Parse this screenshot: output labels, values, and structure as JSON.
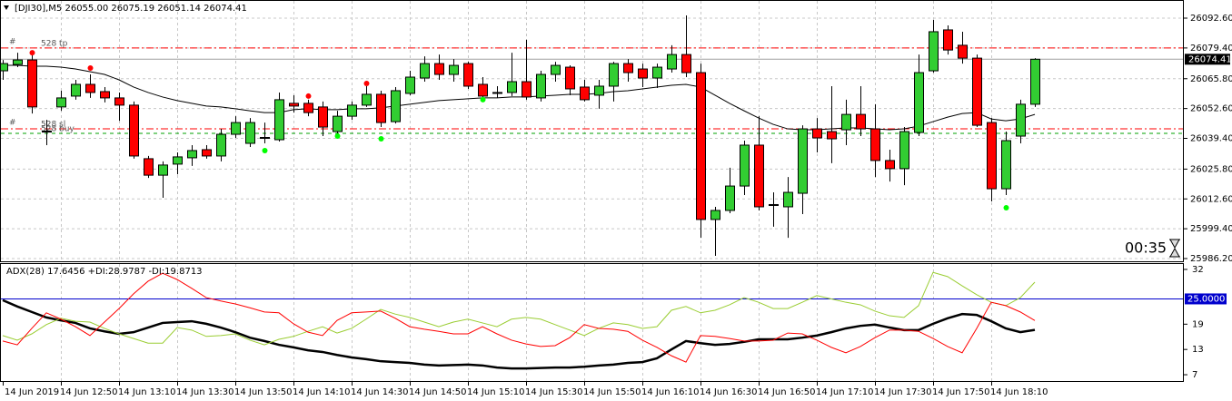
{
  "chart_data": [
    {
      "type": "candlestick",
      "title": "[DJI30],M5  26055.00 26075.19 26051.14 26074.41",
      "countdown": "00:35",
      "categories": [
        "14 Jun 2019",
        null,
        null,
        null,
        "14 Jun 12:50",
        null,
        null,
        null,
        "14 Jun 13:10",
        null,
        null,
        null,
        "14 Jun 13:30",
        null,
        null,
        null,
        "14 Jun 13:50",
        null,
        null,
        null,
        "14 Jun 14:10",
        null,
        null,
        null,
        "14 Jun 14:30",
        null,
        null,
        null,
        "14 Jun 14:50",
        null,
        null,
        null,
        "14 Jun 15:10",
        null,
        null,
        null,
        "14 Jun 15:30",
        null,
        null,
        null,
        "14 Jun 15:50",
        null,
        null,
        null,
        "14 Jun 16:10",
        null,
        null,
        null,
        "14 Jun 16:30",
        null,
        null,
        null,
        "14 Jun 16:50",
        null,
        null,
        null,
        "14 Jun 17:10",
        null,
        null,
        null,
        "14 Jun 17:30",
        null,
        null,
        null,
        "14 Jun 17:50",
        null,
        null,
        null,
        "14 Jun 18:10",
        null,
        null,
        null
      ],
      "open": [
        26069.3,
        26072.1,
        26074.1,
        26042.4,
        26053.3,
        26058.1,
        26063.3,
        26060.1,
        26057.3,
        26054.1,
        26030.4,
        26023.1,
        26028.0,
        26030.8,
        26034.4,
        26031.6,
        26041.2,
        26037.2,
        26039.6,
        26038.8,
        26054.9,
        26054.9,
        26053.3,
        26042.4,
        26049.2,
        26054.1,
        26058.9,
        26046.8,
        26059.3,
        26066.1,
        26072.5,
        26067.7,
        26072.5,
        26063.3,
        26059.7,
        26059.7,
        26064.5,
        26057.3,
        26067.7,
        26070.9,
        26062.1,
        26058.5,
        26062.5,
        26072.5,
        26070.1,
        26066.1,
        26070.1,
        26076.5,
        26068.5,
        26003.5,
        26007.5,
        26018.3,
        26036.4,
        26009.9,
        26009.1,
        26015.1,
        26043.6,
        26042.4,
        26043.2,
        26050.0,
        26043.6,
        26029.6,
        26026.0,
        26042.0,
        26069.3,
        26087.4,
        26080.6,
        26074.9,
        26046.4,
        26017.1,
        26040.4,
        26054.5
      ],
      "high": [
        26074.1,
        26077.3,
        26077.3,
        26047.6,
        26060.5,
        26065.3,
        26067.7,
        26062.1,
        26059.7,
        26055.7,
        26031.6,
        26029.2,
        26033.2,
        26036.4,
        26036.4,
        26043.6,
        26049.2,
        26048.4,
        26046.4,
        26059.7,
        26058.5,
        26056.5,
        26055.7,
        26051.6,
        26055.7,
        26062.5,
        26060.5,
        26062.1,
        26069.3,
        26075.7,
        26076.5,
        26074.5,
        26073.3,
        26066.5,
        26062.5,
        26077.3,
        26083.0,
        26069.3,
        26073.3,
        26071.7,
        26065.3,
        26065.3,
        26073.3,
        26074.5,
        26072.5,
        26072.5,
        26080.6,
        26093.8,
        26072.5,
        26009.1,
        26026.4,
        26038.4,
        26049.2,
        26015.5,
        26022.3,
        26045.2,
        26048.4,
        26062.5,
        26056.5,
        26062.5,
        26054.5,
        26034.4,
        26044.4,
        26076.5,
        26091.8,
        26089.4,
        26086.6,
        26076.5,
        26048.4,
        26042.4,
        26056.5,
        26074.9
      ],
      "low": [
        26065.3,
        26070.9,
        26050.4,
        26036.4,
        26051.6,
        26056.5,
        26057.3,
        26055.3,
        26047.2,
        26030.4,
        26021.9,
        26013.1,
        26023.5,
        26027.2,
        26030.4,
        26029.2,
        26039.6,
        26035.6,
        26037.2,
        26038.0,
        26050.8,
        26049.2,
        26040.4,
        26040.4,
        26047.6,
        26053.3,
        26044.4,
        26046.0,
        26058.5,
        26064.5,
        26065.3,
        26064.5,
        26061.3,
        26056.5,
        26057.3,
        26058.1,
        26056.5,
        26055.7,
        26064.5,
        26058.5,
        26055.7,
        26052.5,
        26055.7,
        26064.5,
        26062.1,
        26061.7,
        26068.5,
        26066.5,
        25995.4,
        25987.4,
        26006.3,
        26014.3,
        26007.5,
        26000.3,
        25995.4,
        26005.9,
        26033.2,
        26028.4,
        26036.4,
        26040.4,
        26022.3,
        26020.3,
        26018.7,
        26040.4,
        26068.5,
        26076.5,
        26072.5,
        26044.4,
        26011.5,
        26014.3,
        26037.2,
        26053.3
      ],
      "close": [
        26072.5,
        26074.1,
        26053.3,
        26042.6,
        26057.3,
        26063.3,
        26059.7,
        26057.3,
        26054.1,
        26031.6,
        26023.1,
        26027.6,
        26031.2,
        26034.0,
        26031.6,
        26041.2,
        26046.4,
        26046.4,
        26039.8,
        26056.5,
        26053.7,
        26050.8,
        26044.4,
        26049.2,
        26054.1,
        26058.9,
        26046.4,
        26060.5,
        26066.5,
        26072.5,
        26067.7,
        26071.7,
        26062.5,
        26058.1,
        26059.3,
        26064.5,
        26057.7,
        26067.7,
        26071.7,
        26061.3,
        26056.5,
        26062.5,
        26072.5,
        26068.5,
        26066.1,
        26070.9,
        26076.5,
        26068.5,
        26003.5,
        26007.5,
        26018.3,
        26036.4,
        26009.1,
        26010.1,
        26015.5,
        26043.6,
        26039.6,
        26039.2,
        26050.0,
        26043.6,
        26029.6,
        26026.0,
        26042.4,
        26068.5,
        26086.6,
        26078.5,
        26074.9,
        26045.2,
        26017.1,
        26038.4,
        26054.5,
        26074.41
      ],
      "up_color": "#32cd32",
      "down_color": "#ff0000",
      "ma": {
        "color": "#000000",
        "values": [
          26071.7,
          26071.7,
          26071.3,
          26071.3,
          26070.9,
          26070.1,
          26068.9,
          26067.7,
          26065.3,
          26062.1,
          26059.7,
          26057.7,
          26056.1,
          26054.9,
          26053.7,
          26053.3,
          26052.5,
          26051.6,
          26050.8,
          26050.8,
          26052.1,
          26052.5,
          26052.1,
          26052.1,
          26052.5,
          26052.5,
          26052.9,
          26053.7,
          26054.5,
          26055.3,
          26056.1,
          26056.5,
          26056.9,
          26057.3,
          26057.3,
          26057.7,
          26057.7,
          26058.1,
          26058.5,
          26058.9,
          26058.9,
          26059.3,
          26060.1,
          26060.5,
          26061.3,
          26062.1,
          26062.9,
          26063.3,
          26062.1,
          26058.5,
          26054.9,
          26051.6,
          26048.4,
          26045.6,
          26043.6,
          26043.2,
          26043.2,
          26043.6,
          26044.0,
          26044.0,
          26043.6,
          26043.2,
          26043.6,
          26044.8,
          26046.8,
          26048.8,
          26050.4,
          26050.8,
          26048.0,
          26047.2,
          26048.0,
          26050.0
        ]
      },
      "markers": [
        {
          "index": 2,
          "value": 26077.3,
          "color": "#ff0000"
        },
        {
          "index": 6,
          "value": 26070.5,
          "color": "#ff0000"
        },
        {
          "index": 21,
          "value": 26058.1,
          "color": "#ff0000"
        },
        {
          "index": 25,
          "value": 26063.7,
          "color": "#ff0000"
        },
        {
          "index": 18,
          "value": 26034.0,
          "color": "#00ff00"
        },
        {
          "index": 23,
          "value": 26040.4,
          "color": "#00ff00"
        },
        {
          "index": 26,
          "value": 26039.2,
          "color": "#00ff00"
        },
        {
          "index": 33,
          "value": 26056.5,
          "color": "#00ff00"
        },
        {
          "index": 69,
          "value": 26008.7,
          "color": "#00ff00"
        }
      ],
      "order_lines": [
        {
          "prefix": "#",
          "label": "528 tp",
          "value": 26079.4,
          "color": "#ff0000"
        },
        {
          "prefix": "#",
          "label": "528 sl",
          "value": 26043.6,
          "color": "#ff0000"
        },
        {
          "label": "528 buy",
          "value": 26041.6,
          "color": "#00a000"
        }
      ],
      "bid": {
        "value": 26074.41,
        "label": "26074.41"
      },
      "ylim": [
        25985.0,
        26099.83
      ],
      "yticks": [
        {
          "value": 26092.6,
          "label": "26092.60"
        },
        {
          "value": 26079.4,
          "label": "26079.40"
        },
        {
          "value": 26065.8,
          "label": "26065.80"
        },
        {
          "value": 26052.6,
          "label": "26052.60"
        },
        {
          "value": 26039.4,
          "label": "26039.40"
        },
        {
          "value": 26025.8,
          "label": "26025.80"
        },
        {
          "value": 26012.6,
          "label": "26012.60"
        },
        {
          "value": 25999.4,
          "label": "25999.40"
        },
        {
          "value": 25986.2,
          "label": "25986.20"
        }
      ],
      "grid": true
    },
    {
      "type": "line",
      "title": "ADX(28) 17.6456 +DI:28.9787 -DI:19.8713",
      "series": [
        {
          "color": "#000000",
          "values": [
            24.7,
            23.2,
            21.9,
            20.6,
            19.9,
            19.3,
            18.0,
            17.3,
            16.7,
            17.1,
            18.2,
            19.3,
            19.5,
            19.7,
            19.1,
            18.2,
            17.1,
            15.8,
            15.0,
            14.1,
            13.5,
            12.8,
            12.4,
            11.7,
            11.1,
            10.7,
            10.2,
            10.0,
            9.8,
            9.4,
            9.2,
            9.3,
            9.4,
            9.2,
            8.7,
            8.5,
            8.5,
            8.6,
            8.7,
            8.7,
            8.9,
            9.2,
            9.4,
            9.8,
            10.0,
            10.9,
            13.0,
            15.0,
            14.5,
            14.1,
            14.3,
            14.8,
            15.4,
            15.4,
            15.4,
            15.8,
            16.3,
            17.1,
            18.0,
            18.6,
            18.9,
            18.2,
            17.6,
            17.6,
            19.1,
            20.4,
            21.4,
            21.2,
            19.7,
            18.0,
            17.1,
            17.6456
          ]
        },
        {
          "color": "#9acd32",
          "values": [
            16.3,
            15.2,
            16.7,
            18.9,
            20.4,
            19.7,
            19.5,
            18.0,
            16.7,
            15.6,
            14.5,
            14.5,
            18.2,
            17.6,
            16.1,
            16.3,
            16.7,
            15.2,
            14.1,
            15.4,
            16.1,
            17.3,
            18.4,
            16.9,
            18.0,
            20.2,
            22.5,
            21.4,
            20.6,
            19.5,
            18.4,
            19.5,
            20.2,
            19.3,
            18.4,
            20.2,
            20.6,
            20.2,
            18.9,
            17.6,
            16.3,
            18.0,
            19.3,
            18.9,
            18.0,
            18.4,
            22.3,
            23.2,
            21.7,
            22.3,
            23.6,
            25.3,
            24.2,
            22.7,
            22.7,
            24.2,
            25.8,
            25.0,
            24.2,
            23.6,
            22.1,
            21.0,
            20.6,
            23.4,
            31.3,
            30.3,
            28.1,
            26.0,
            24.2,
            23.4,
            25.3,
            28.9787
          ]
        },
        {
          "color": "#ff0000",
          "values": [
            15.0,
            14.1,
            18.0,
            21.7,
            20.2,
            18.4,
            16.3,
            19.5,
            22.7,
            26.2,
            29.2,
            31.1,
            29.6,
            27.5,
            25.3,
            24.5,
            23.8,
            22.9,
            21.9,
            21.7,
            19.1,
            17.1,
            16.3,
            19.9,
            21.7,
            21.9,
            22.1,
            20.4,
            18.4,
            17.8,
            17.3,
            16.7,
            16.7,
            18.4,
            16.7,
            15.2,
            14.3,
            13.7,
            13.9,
            15.8,
            18.9,
            18.0,
            17.8,
            17.3,
            15.2,
            13.5,
            11.5,
            10.0,
            16.3,
            16.1,
            15.6,
            15.0,
            15.0,
            15.2,
            16.9,
            16.7,
            15.2,
            13.5,
            12.2,
            13.7,
            15.8,
            17.6,
            17.6,
            17.3,
            15.6,
            13.7,
            12.2,
            18.0,
            24.2,
            23.4,
            21.9,
            19.8713
          ]
        }
      ],
      "level": {
        "value": 25,
        "label": "25.0000",
        "color": "#0000cd"
      },
      "ylim": [
        5.5,
        33.5
      ],
      "yticks": [
        32,
        19,
        13,
        7
      ]
    }
  ]
}
